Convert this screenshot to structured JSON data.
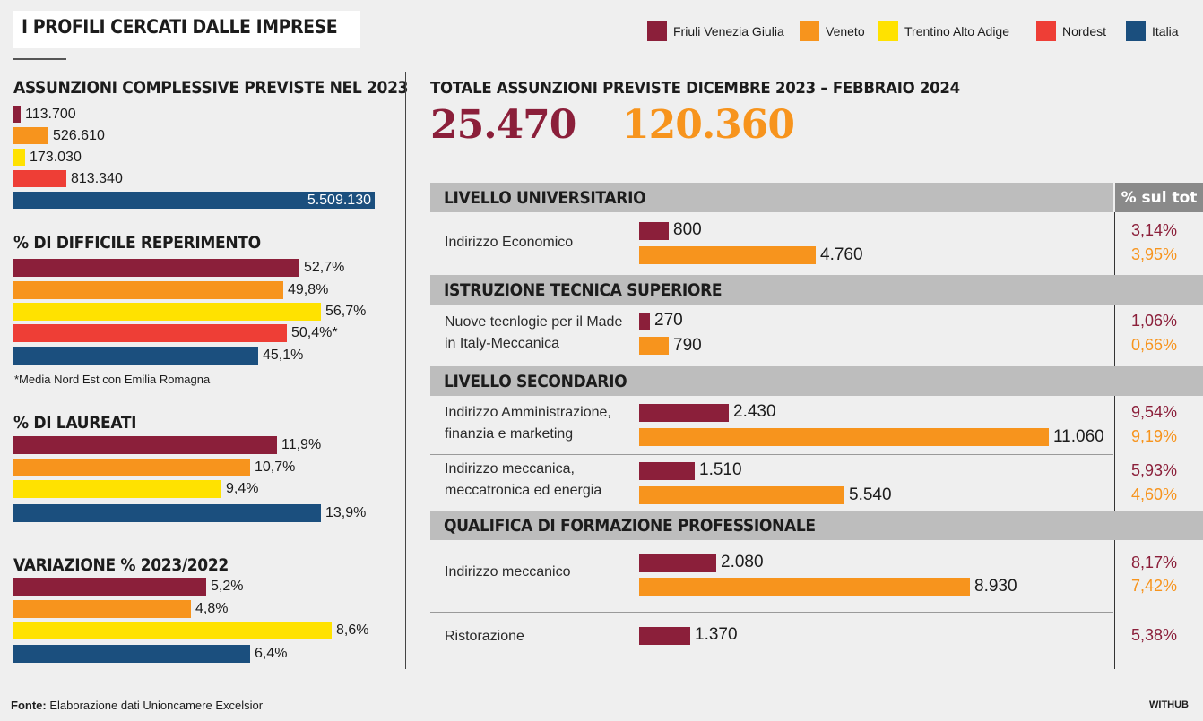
{
  "title": "I PROFILI CERCATI DALLE IMPRESE",
  "colors": {
    "fvg": "#8b1f3a",
    "veneto": "#f7941d",
    "trentino": "#ffe200",
    "nordest": "#ee3e36",
    "italia": "#1b4f7e",
    "band": "#bdbdbd",
    "pct_head": "#8a8a8a"
  },
  "legend": [
    {
      "key": "fvg",
      "label": "Friuli Venezia Giulia"
    },
    {
      "key": "veneto",
      "label": "Veneto"
    },
    {
      "key": "trentino",
      "label": "Trentino Alto Adige"
    },
    {
      "key": "nordest",
      "label": "Nordest"
    },
    {
      "key": "italia",
      "label": "Italia"
    }
  ],
  "chart_data": [
    {
      "type": "bar",
      "orientation": "horizontal",
      "title": "ASSUNZIONI COMPLESSIVE PREVISTE NEL 2023",
      "categories": [
        "Friuli Venezia Giulia",
        "Veneto",
        "Trentino Alto Adige",
        "Nordest",
        "Italia"
      ],
      "values": [
        113700,
        526610,
        173030,
        813340,
        5509130
      ],
      "labels": [
        "113.700",
        "526.610",
        "173.030",
        "813.340",
        "5.509.130"
      ],
      "note": ""
    },
    {
      "type": "bar",
      "orientation": "horizontal",
      "title": "% DI DIFFICILE REPERIMENTO",
      "categories": [
        "Friuli Venezia Giulia",
        "Veneto",
        "Trentino Alto Adige",
        "Nordest",
        "Italia"
      ],
      "values": [
        52.7,
        49.8,
        56.7,
        50.4,
        45.1
      ],
      "labels": [
        "52,7%",
        "49,8%",
        "56,7%",
        "50,4%*",
        "45,1%"
      ],
      "note": "*Media Nord Est con Emilia Romagna"
    },
    {
      "type": "bar",
      "orientation": "horizontal",
      "title": "% DI LAUREATI",
      "categories": [
        "Friuli Venezia Giulia",
        "Veneto",
        "Trentino Alto Adige",
        "Italia"
      ],
      "values": [
        11.9,
        10.7,
        9.4,
        13.9
      ],
      "labels": [
        "11,9%",
        "10,7%",
        "9,4%",
        "13,9%"
      ],
      "note": ""
    },
    {
      "type": "bar",
      "orientation": "horizontal",
      "title": "VARIAZIONE % 2023/2022",
      "categories": [
        "Friuli Venezia Giulia",
        "Veneto",
        "Trentino Alto Adige",
        "Italia"
      ],
      "values": [
        5.2,
        4.8,
        8.6,
        6.4
      ],
      "labels": [
        "5,2%",
        "4,8%",
        "8,6%",
        "6,4%"
      ],
      "note": ""
    },
    {
      "type": "bar",
      "orientation": "horizontal",
      "title": "TOTALE ASSUNZIONI PREVISTE DICEMBRE 2023 – FEBBRAIO 2024",
      "totals": [
        {
          "key": "fvg",
          "value": 25470,
          "label": "25.470"
        },
        {
          "key": "veneto",
          "value": 120360,
          "label": "120.360"
        }
      ],
      "pct_header": "% sul tot",
      "sections": [
        {
          "title": "LIVELLO UNIVERSITARIO",
          "rows": [
            {
              "label": [
                "Indirizzo Economico"
              ],
              "fvg": 800,
              "fvg_label": "800",
              "veneto": 4760,
              "veneto_label": "4.760",
              "fvg_pct": "3,14%",
              "veneto_pct": "3,95%"
            }
          ]
        },
        {
          "title": "ISTRUZIONE TECNICA SUPERIORE",
          "rows": [
            {
              "label": [
                "Nuove tecnlogie per il Made",
                "in Italy-Meccanica"
              ],
              "fvg": 270,
              "fvg_label": "270",
              "veneto": 790,
              "veneto_label": "790",
              "fvg_pct": "1,06%",
              "veneto_pct": "0,66%"
            }
          ]
        },
        {
          "title": "LIVELLO SECONDARIO",
          "rows": [
            {
              "label": [
                "Indirizzo Amministrazione,",
                "finanzia e marketing"
              ],
              "fvg": 2430,
              "fvg_label": "2.430",
              "veneto": 11060,
              "veneto_label": "11.060",
              "fvg_pct": "9,54%",
              "veneto_pct": "9,19%"
            },
            {
              "label": [
                "Indirizzo meccanica,",
                "meccatronica ed energia"
              ],
              "fvg": 1510,
              "fvg_label": "1.510",
              "veneto": 5540,
              "veneto_label": "5.540",
              "fvg_pct": "5,93%",
              "veneto_pct": "4,60%"
            }
          ]
        },
        {
          "title": "QUALIFICA DI FORMAZIONE PROFESSIONALE",
          "rows": [
            {
              "label": [
                "Indirizzo meccanico"
              ],
              "fvg": 2080,
              "fvg_label": "2.080",
              "veneto": 8930,
              "veneto_label": "8.930",
              "fvg_pct": "8,17%",
              "veneto_pct": "7,42%"
            },
            {
              "label": [
                "Ristorazione"
              ],
              "fvg": 1370,
              "fvg_label": "1.370",
              "veneto": null,
              "veneto_label": "",
              "fvg_pct": "5,38%",
              "veneto_pct": ""
            }
          ]
        }
      ]
    }
  ],
  "footer": {
    "source_label": "Fonte:",
    "source_text": " Elaborazione dati Unioncamere Excelsior",
    "brand": "WITHUB"
  }
}
